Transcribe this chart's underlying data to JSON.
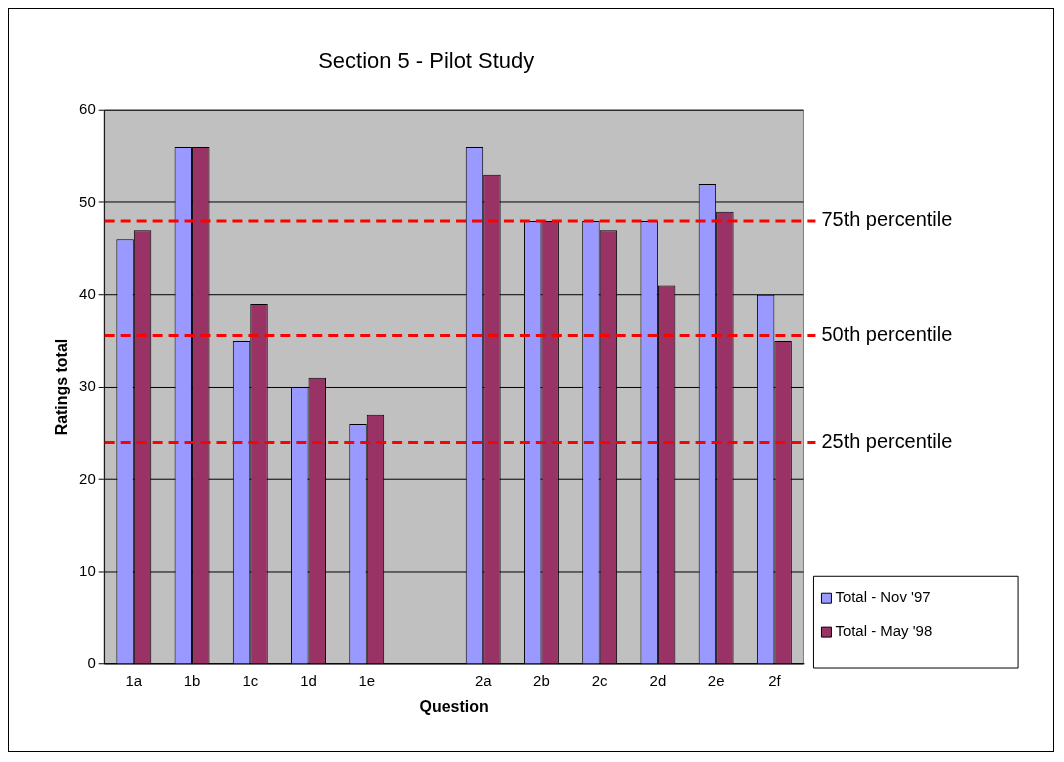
{
  "chart_data": {
    "type": "bar",
    "title": "Section 5 - Pilot Study",
    "xlabel": "Question",
    "ylabel": "Ratings total",
    "categories": [
      "1a",
      "1b",
      "1c",
      "1d",
      "1e",
      null,
      "2a",
      "2b",
      "2c",
      "2d",
      "2e",
      "2f"
    ],
    "series": [
      {
        "name": "Total - Nov '97",
        "color": "#9999ff",
        "values": [
          46,
          56,
          35,
          30,
          26,
          null,
          56,
          48,
          48,
          48,
          52,
          40
        ]
      },
      {
        "name": "Total - May '98",
        "color": "#993366",
        "values": [
          47,
          56,
          39,
          31,
          27,
          null,
          53,
          48,
          47,
          41,
          49,
          35
        ]
      }
    ],
    "ylim": [
      0,
      60
    ],
    "yticks": [
      0,
      10,
      20,
      30,
      40,
      50,
      60
    ],
    "grid": "y",
    "legend": "bottom right",
    "ref_lines": [
      {
        "axis": "y",
        "value": 48,
        "label": "75th percentile",
        "color": "#ff0000",
        "line_style": "dashed"
      },
      {
        "axis": "y",
        "value": 35.6,
        "label": "50th percentile",
        "color": "#ff0000",
        "line_style": "dashed"
      },
      {
        "axis": "y",
        "value": 24,
        "label": "25th percentile",
        "color": "#ff0000",
        "line_style": "dashed"
      }
    ]
  }
}
